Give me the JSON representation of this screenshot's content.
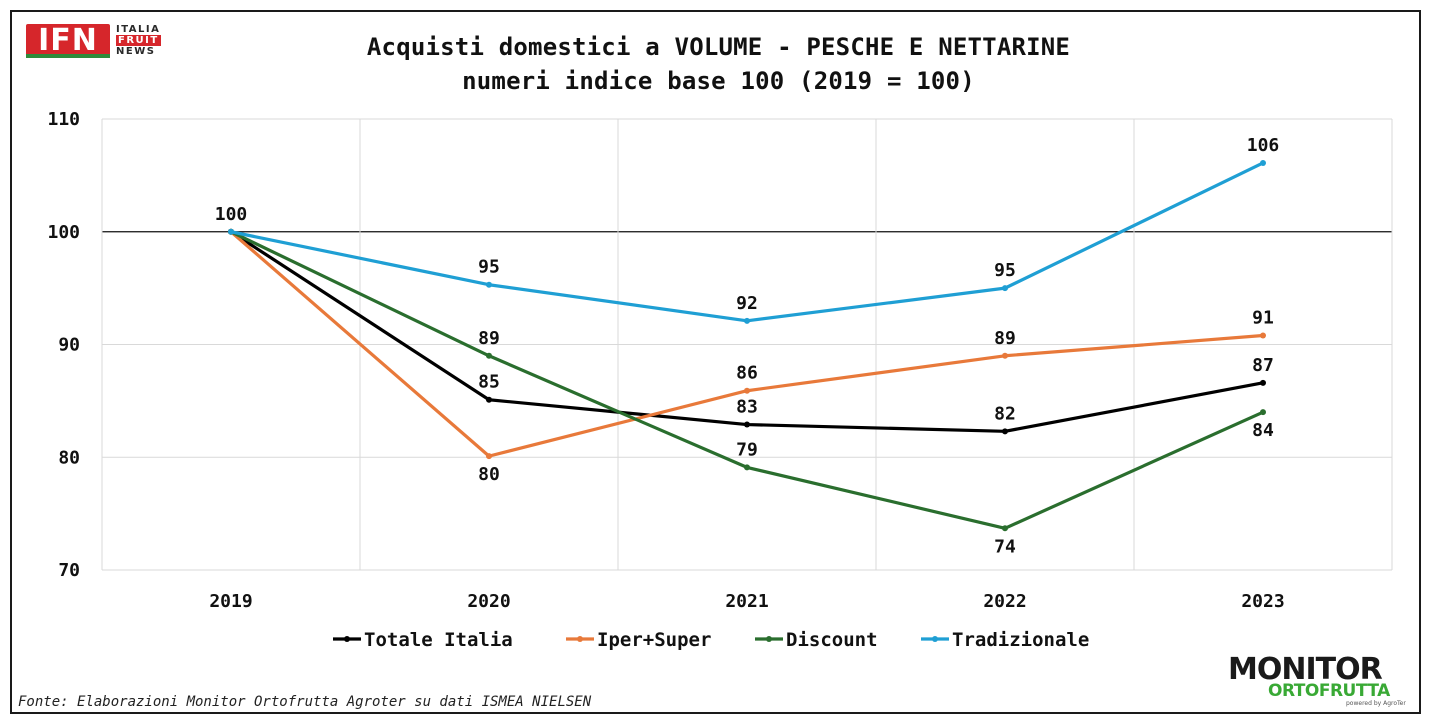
{
  "branding": {
    "ifn_letters": "IFN",
    "ifn_words": [
      "ITALIA",
      "FRUIT",
      "NEWS"
    ],
    "monitor_line1": "MONITOR",
    "monitor_line2": "ORTOFRUTTA",
    "monitor_powered": "powered by AgroTer"
  },
  "source": "Fonte: Elaborazioni Monitor Ortofrutta Agroter su dati ISMEA NIELSEN",
  "chart_data": {
    "type": "line",
    "title": "Acquisti domestici a VOLUME - PESCHE E NETTARINE",
    "subtitle": "numeri indice base 100 (2019 = 100)",
    "categories": [
      "2019",
      "2020",
      "2021",
      "2022",
      "2023"
    ],
    "ylim": [
      70,
      110
    ],
    "yticks": [
      70,
      80,
      90,
      100,
      110
    ],
    "reference_line": 100,
    "grid": true,
    "legend_position": "bottom",
    "series": [
      {
        "name": "Totale Italia",
        "color": "#000000",
        "values": [
          100,
          85.1,
          82.9,
          82.3,
          86.6
        ],
        "labels": [
          "",
          "85",
          "83",
          "82",
          "87"
        ],
        "label_pos": [
          "",
          "above",
          "above",
          "above",
          "above"
        ]
      },
      {
        "name": "Iper+Super",
        "color": "#e8793a",
        "values": [
          100,
          80.1,
          85.9,
          89.0,
          90.8
        ],
        "labels": [
          "",
          "80",
          "86",
          "89",
          "91"
        ],
        "label_pos": [
          "",
          "below",
          "above",
          "above",
          "above"
        ]
      },
      {
        "name": "Discount",
        "color": "#2a6e2e",
        "values": [
          100,
          89.0,
          79.1,
          73.7,
          84.0
        ],
        "labels": [
          "",
          "89",
          "79",
          "74",
          "84"
        ],
        "label_pos": [
          "",
          "above",
          "above",
          "below",
          "below"
        ]
      },
      {
        "name": "Tradizionale",
        "color": "#1f9fd4",
        "values": [
          100,
          95.3,
          92.1,
          95.0,
          106.1
        ],
        "labels": [
          "100",
          "95",
          "92",
          "95",
          "106"
        ],
        "label_pos": [
          "above",
          "above",
          "above",
          "above",
          "above"
        ]
      }
    ]
  }
}
